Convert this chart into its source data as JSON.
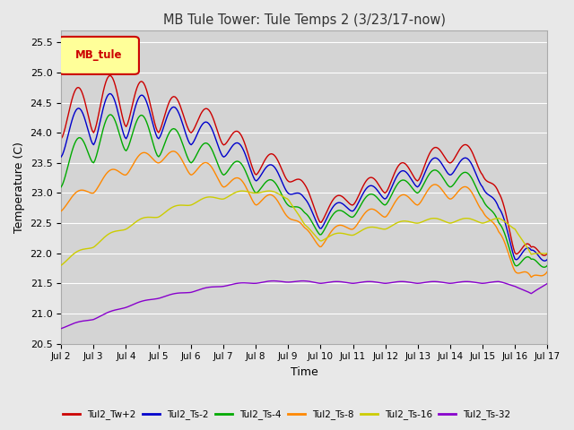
{
  "title": "MB Tule Tower: Tule Temps 2 (3/23/17-now)",
  "xlabel": "Time",
  "ylabel": "Temperature (C)",
  "ylim": [
    20.5,
    25.7
  ],
  "yticks": [
    20.5,
    21.0,
    21.5,
    22.0,
    22.5,
    23.0,
    23.5,
    24.0,
    24.5,
    25.0,
    25.5
  ],
  "xtick_labels": [
    "Jul 2",
    "Jul 3",
    "Jul 4",
    "Jul 5",
    "Jul 6",
    "Jul 7",
    "Jul 8",
    "Jul 9",
    "Jul 10",
    "Jul 11",
    "Jul 12",
    "Jul 13",
    "Jul 14",
    "Jul 15",
    "Jul 16",
    "Jul 17"
  ],
  "bg_color": "#e8e8e8",
  "plot_bg_color": "#d4d4d4",
  "grid_color": "#ffffff",
  "legend_box_label": "MB_tule",
  "legend_box_facecolor": "#ffff99",
  "legend_box_edgecolor": "#cc0000",
  "series": [
    {
      "label": "Tul2_Tw+2",
      "color": "#cc0000",
      "lw": 1.0
    },
    {
      "label": "Tul2_Ts-2",
      "color": "#0000cc",
      "lw": 1.0
    },
    {
      "label": "Tul2_Ts-4",
      "color": "#00aa00",
      "lw": 1.0
    },
    {
      "label": "Tul2_Ts-8",
      "color": "#ff8800",
      "lw": 1.0
    },
    {
      "label": "Tul2_Ts-16",
      "color": "#cccc00",
      "lw": 1.0
    },
    {
      "label": "Tul2_Ts-32",
      "color": "#8800cc",
      "lw": 1.0
    }
  ]
}
